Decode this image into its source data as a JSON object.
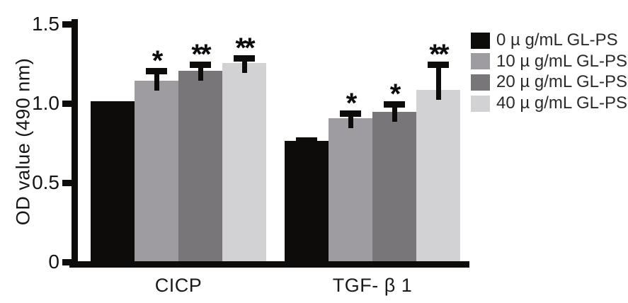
{
  "chart_data": {
    "type": "bar",
    "title": "",
    "ylabel": "OD value (490 nm)",
    "xlabel": "",
    "ylim": [
      0,
      1.5
    ],
    "yticks": [
      {
        "value": 0,
        "label": "0"
      },
      {
        "value": 0.5,
        "label": "0.5"
      },
      {
        "value": 1.0,
        "label": "1.0"
      },
      {
        "value": 1.5,
        "label": "1.5"
      }
    ],
    "categories": [
      "CICP",
      "TGF- β 1"
    ],
    "category_keys": [
      "cicp",
      "tgfb1"
    ],
    "series": [
      {
        "name": "0 µ g/mL GL-PS",
        "key": "0ug",
        "color": "#0d0c0a",
        "values": [
          1.01,
          0.76
        ],
        "errors": [
          0,
          0.02
        ],
        "sig": [
          "",
          ""
        ]
      },
      {
        "name": "10 µ g/mL GL-PS",
        "key": "10ug",
        "color": "#9e9ca1",
        "values": [
          1.14,
          0.9
        ],
        "errors": [
          0.08,
          0.05
        ],
        "sig": [
          "*",
          "*"
        ]
      },
      {
        "name": "20 µ g/mL GL-PS",
        "key": "20ug",
        "color": "#797679",
        "values": [
          1.2,
          0.94
        ],
        "errors": [
          0.06,
          0.07
        ],
        "sig": [
          "**",
          "*"
        ]
      },
      {
        "name": "40 µ g/mL GL-PS",
        "key": "40ug",
        "color": "#d2d2d4",
        "values": [
          1.25,
          1.08
        ],
        "errors": [
          0.05,
          0.18
        ],
        "sig": [
          "**",
          "**"
        ]
      }
    ],
    "error_bars": "upper",
    "grid": false,
    "legend_position": "right",
    "axis_color": "#0d0c0a",
    "background_color": "#ffffff"
  }
}
